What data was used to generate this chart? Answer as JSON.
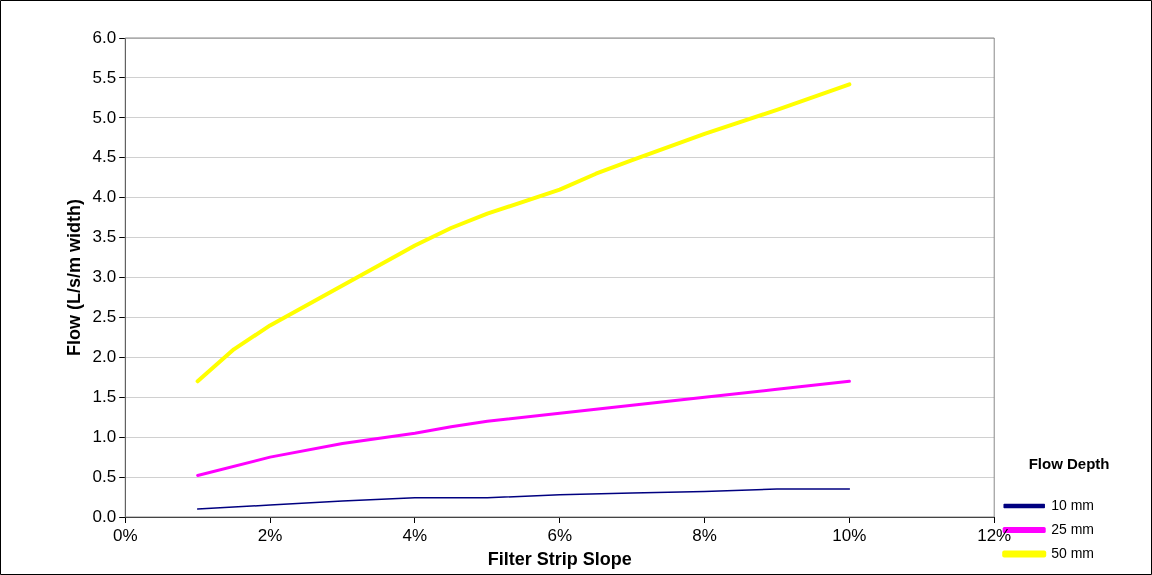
{
  "chart_data": {
    "type": "line",
    "xlabel": "Filter Strip Slope",
    "ylabel": "Flow (L/s/m width)",
    "legend_title": "Flow Depth",
    "xlim": [
      0,
      12
    ],
    "xticks": [
      {
        "value": 0,
        "label": "0%"
      },
      {
        "value": 2,
        "label": "2%"
      },
      {
        "value": 4,
        "label": "4%"
      },
      {
        "value": 6,
        "label": "6%"
      },
      {
        "value": 8,
        "label": "8%"
      },
      {
        "value": 10,
        "label": "10%"
      },
      {
        "value": 12,
        "label": "12%"
      }
    ],
    "ylim": [
      0,
      6
    ],
    "yticks": [
      {
        "value": 0,
        "label": "0.0"
      },
      {
        "value": 0.5,
        "label": "0.5"
      },
      {
        "value": 1,
        "label": "1.0"
      },
      {
        "value": 1.5,
        "label": "1.5"
      },
      {
        "value": 2,
        "label": "2.0"
      },
      {
        "value": 2.5,
        "label": "2.5"
      },
      {
        "value": 3,
        "label": "3.0"
      },
      {
        "value": 3.5,
        "label": "3.5"
      },
      {
        "value": 4,
        "label": "4.0"
      },
      {
        "value": 4.5,
        "label": "4.5"
      },
      {
        "value": 5,
        "label": "5.0"
      },
      {
        "value": 5.5,
        "label": "5.5"
      },
      {
        "value": 6,
        "label": "6.0"
      }
    ],
    "grid": "y",
    "legend": "right",
    "marker": "none",
    "line_style": "solid",
    "series": [
      {
        "name": "10 mm",
        "color": "#000080",
        "x": [
          1,
          2,
          3,
          4,
          5,
          6,
          7,
          8,
          9,
          10
        ],
        "values": [
          0.1,
          0.15,
          0.2,
          0.24,
          0.24,
          0.28,
          0.3,
          0.32,
          0.35,
          0.35
        ]
      },
      {
        "name": "25 mm",
        "color": "#ff00ff",
        "x": [
          1,
          2,
          3,
          4,
          4.5,
          5,
          6,
          7,
          8,
          9,
          10
        ],
        "values": [
          0.52,
          0.75,
          0.92,
          1.05,
          1.13,
          1.2,
          1.3,
          1.4,
          1.5,
          1.6,
          1.7
        ]
      },
      {
        "name": "50 mm",
        "color": "#ffff00",
        "x": [
          1,
          1.5,
          2,
          3,
          4,
          4.5,
          5,
          6,
          6.5,
          7,
          8,
          9,
          10
        ],
        "values": [
          1.7,
          2.1,
          2.4,
          2.9,
          3.4,
          3.62,
          3.8,
          4.1,
          4.3,
          4.47,
          4.8,
          5.1,
          5.42
        ]
      }
    ]
  }
}
